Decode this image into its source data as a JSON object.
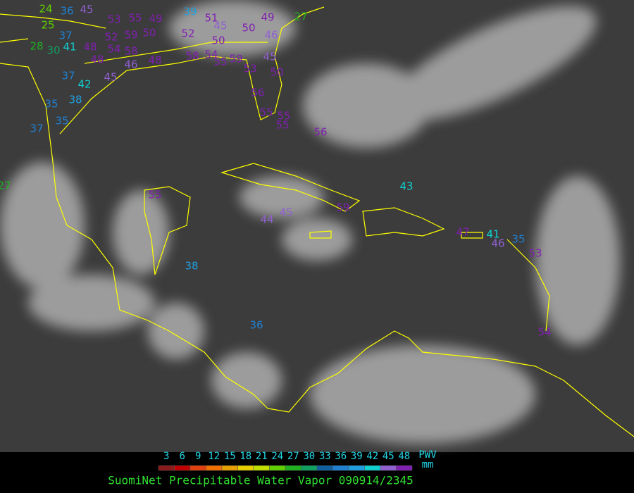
{
  "title": "SuomiNet Precipitable Water Vapor 090914/2345",
  "legend": {
    "ticks": [
      3,
      6,
      9,
      12,
      15,
      18,
      21,
      24,
      27,
      30,
      33,
      36,
      39,
      42,
      45,
      48
    ],
    "colors": [
      "#8b1a1a",
      "#c00000",
      "#e04010",
      "#f07000",
      "#e8a000",
      "#e8d000",
      "#c0e000",
      "#60d000",
      "#20b020",
      "#10a060",
      "#1060a0",
      "#2080d0",
      "#20a0e0",
      "#10d0d0",
      "#9060d0",
      "#8020b0"
    ],
    "unit_top": "PWV",
    "unit_bottom": "mm"
  },
  "stations": [
    24,
    36,
    45,
    53,
    55,
    49,
    39,
    51,
    45,
    50,
    49,
    46,
    27,
    25,
    37,
    41,
    30,
    28,
    48,
    52,
    59,
    50,
    52,
    50,
    54,
    58,
    48,
    46,
    48,
    58,
    54,
    55,
    59,
    45,
    53,
    50,
    37,
    42,
    45,
    35,
    38,
    37,
    35,
    56,
    55,
    55,
    55,
    56,
    43,
    55,
    59,
    44,
    45,
    47,
    41,
    46,
    35,
    38,
    36,
    54,
    53,
    27
  ]
}
